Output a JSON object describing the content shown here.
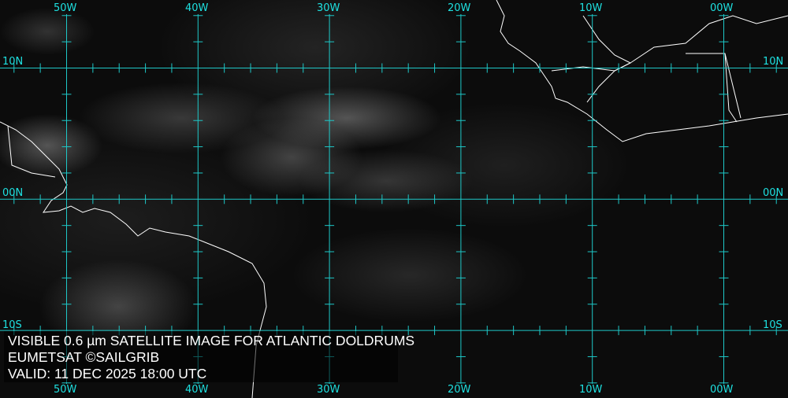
{
  "map": {
    "grid_color": "#1ec8c8",
    "coast_color": "#ffffff",
    "longitude_labels": [
      "50W",
      "40W",
      "30W",
      "20W",
      "10W",
      "00W"
    ],
    "latitude_labels": [
      "10N",
      "00N",
      "10S"
    ]
  },
  "caption": {
    "line1": "VISIBLE 0.6 µm SATELLITE IMAGE FOR ATLANTIC DOLDRUMS",
    "line2": "EUMETSAT ©SAILGRIB",
    "line3": "VALID:  11 DEC 2025 18:00 UTC"
  }
}
